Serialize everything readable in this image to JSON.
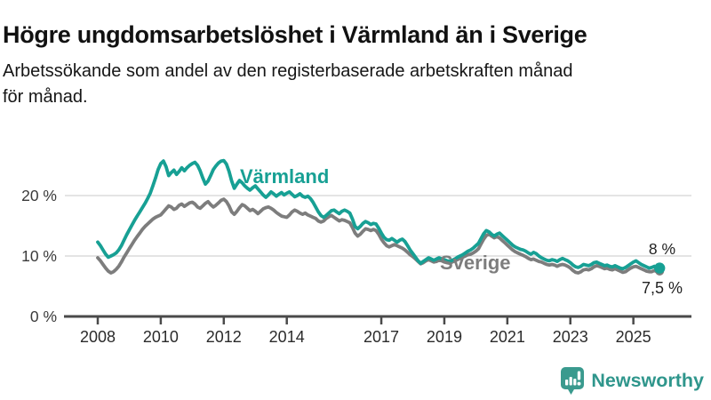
{
  "header": {
    "title": "Högre ungdomsarbetslöshet i Värmland än i Sverige",
    "subtitle_line1": "Arbetssökande som andel av den registerbaserade arbetskraften månad",
    "subtitle_line2": "för månad."
  },
  "chart_data": {
    "type": "line",
    "title": "Högre ungdomsarbetslöshet i Värmland än i Sverige",
    "xlabel": "",
    "ylabel": "Arbetssökande som andel av den registerbaserade arbetskraften",
    "x_start_year": 2008,
    "x_start_month": 1,
    "x_months_per_point": 1,
    "x_end_label_period": "2025 (november)",
    "x_tick_years": [
      2008,
      2010,
      2012,
      2014,
      2017,
      2019,
      2021,
      2023,
      2025
    ],
    "ylim": [
      0,
      27
    ],
    "grid": "horizontal",
    "legend_position": "inline-labels",
    "y_ticks": [
      {
        "value": 0,
        "label": "0 %"
      },
      {
        "value": 10,
        "label": "10 %"
      },
      {
        "value": 20,
        "label": "20 %"
      }
    ],
    "series": [
      {
        "name": "Sverige",
        "color": "#7d7d7d",
        "end_label": "7,5 %",
        "end_value": 7.5,
        "values": [
          9.7,
          9.2,
          8.6,
          8.0,
          7.5,
          7.2,
          7.4,
          7.8,
          8.3,
          9.0,
          9.8,
          10.5,
          11.2,
          11.9,
          12.6,
          13.2,
          13.8,
          14.4,
          14.9,
          15.3,
          15.7,
          16.1,
          16.4,
          16.6,
          16.8,
          17.3,
          17.8,
          18.3,
          18.1,
          17.7,
          17.9,
          18.4,
          18.6,
          18.2,
          18.5,
          18.8,
          18.9,
          18.6,
          18.1,
          17.9,
          18.3,
          18.7,
          19.0,
          18.5,
          18.1,
          18.4,
          18.8,
          19.2,
          19.4,
          19.0,
          18.3,
          17.3,
          16.9,
          17.4,
          18.0,
          18.5,
          18.3,
          17.9,
          17.5,
          17.7,
          17.4,
          17.0,
          17.4,
          17.8,
          18.0,
          18.1,
          17.9,
          17.6,
          17.2,
          16.9,
          16.6,
          16.5,
          16.4,
          16.8,
          17.3,
          17.6,
          17.4,
          17.1,
          16.9,
          17.1,
          16.8,
          16.6,
          16.4,
          16.2,
          15.8,
          15.6,
          15.8,
          16.2,
          16.5,
          16.7,
          16.4,
          16.1,
          15.8,
          16.0,
          15.9,
          15.7,
          15.5,
          14.7,
          13.8,
          13.3,
          13.6,
          14.1,
          14.5,
          14.4,
          14.2,
          14.4,
          14.2,
          13.6,
          12.8,
          12.2,
          11.7,
          11.5,
          11.7,
          11.9,
          11.7,
          11.5,
          11.3,
          11.0,
          10.6,
          10.2,
          9.9,
          9.5,
          9.1,
          8.7,
          8.9,
          9.2,
          9.4,
          9.2,
          9.0,
          9.1,
          9.3,
          9.2,
          9.0,
          8.9,
          8.8,
          9.0,
          9.2,
          9.4,
          9.6,
          9.8,
          10.0,
          10.2,
          10.3,
          10.5,
          10.8,
          11.2,
          12.0,
          12.8,
          13.4,
          13.6,
          13.3,
          13.0,
          13.2,
          13.0,
          12.6,
          12.2,
          11.8,
          11.4,
          11.0,
          10.7,
          10.5,
          10.3,
          10.1,
          9.9,
          9.6,
          9.4,
          9.5,
          9.3,
          9.1,
          9.0,
          8.8,
          8.6,
          8.5,
          8.6,
          8.5,
          8.3,
          8.5,
          8.6,
          8.5,
          8.3,
          8.0,
          7.6,
          7.3,
          7.2,
          7.4,
          7.7,
          7.8,
          7.7,
          7.9,
          8.2,
          8.4,
          8.3,
          8.1,
          7.9,
          8.0,
          7.8,
          7.7,
          7.9,
          7.7,
          7.5,
          7.3,
          7.4,
          7.7,
          8.0,
          8.2,
          8.3,
          8.1,
          7.9,
          7.7,
          7.5,
          7.4,
          7.4,
          7.6,
          7.4,
          7.5
        ]
      },
      {
        "name": "Värmland",
        "color": "#17a094",
        "end_label": "8 %",
        "end_value": 8.0,
        "values": [
          12.3,
          11.7,
          11.0,
          10.3,
          9.8,
          10.0,
          10.2,
          10.5,
          11.0,
          11.7,
          12.6,
          13.5,
          14.3,
          15.1,
          15.9,
          16.6,
          17.3,
          18.0,
          18.7,
          19.5,
          20.4,
          21.6,
          22.9,
          24.3,
          25.3,
          25.7,
          24.8,
          23.3,
          23.8,
          24.2,
          23.5,
          24.0,
          24.6,
          24.1,
          24.6,
          25.0,
          25.3,
          25.5,
          25.0,
          24.1,
          22.9,
          21.9,
          22.4,
          23.3,
          24.3,
          24.9,
          25.4,
          25.7,
          25.8,
          25.2,
          24.0,
          22.4,
          21.2,
          21.9,
          22.5,
          22.1,
          21.6,
          21.2,
          20.9,
          21.3,
          21.6,
          21.1,
          20.6,
          20.1,
          19.7,
          20.1,
          20.6,
          20.3,
          19.9,
          20.2,
          20.5,
          20.1,
          20.4,
          20.6,
          20.2,
          19.8,
          20.0,
          20.3,
          19.9,
          19.7,
          19.9,
          19.5,
          18.9,
          18.1,
          17.3,
          16.7,
          16.4,
          16.7,
          17.1,
          17.5,
          17.6,
          17.3,
          17.0,
          17.4,
          17.6,
          17.4,
          17.1,
          16.1,
          14.9,
          14.5,
          14.9,
          15.4,
          15.7,
          15.5,
          15.2,
          15.4,
          15.3,
          14.6,
          13.8,
          13.1,
          12.7,
          12.6,
          12.9,
          12.6,
          12.3,
          12.6,
          12.8,
          12.4,
          11.7,
          11.0,
          10.4,
          9.8,
          9.2,
          8.8,
          9.1,
          9.4,
          9.7,
          9.5,
          9.3,
          9.5,
          9.7,
          9.5,
          9.4,
          9.2,
          9.1,
          9.3,
          9.5,
          9.8,
          10.0,
          10.2,
          10.5,
          10.8,
          11.0,
          11.3,
          11.7,
          12.1,
          12.9,
          13.7,
          14.2,
          14.0,
          13.6,
          13.3,
          13.6,
          13.8,
          13.4,
          13.0,
          12.6,
          12.2,
          11.8,
          11.5,
          11.3,
          11.1,
          11.0,
          10.8,
          10.5,
          10.3,
          10.6,
          10.4,
          10.0,
          9.7,
          9.5,
          9.3,
          9.2,
          9.4,
          9.3,
          9.1,
          9.4,
          9.6,
          9.4,
          9.2,
          8.9,
          8.5,
          8.2,
          8.1,
          8.3,
          8.6,
          8.5,
          8.4,
          8.6,
          8.9,
          9.0,
          8.8,
          8.6,
          8.4,
          8.5,
          8.3,
          8.2,
          8.4,
          8.2,
          8.0,
          7.9,
          8.1,
          8.4,
          8.7,
          9.0,
          9.2,
          8.9,
          8.6,
          8.4,
          8.2,
          8.0,
          8.1,
          8.3,
          7.9,
          8.0
        ]
      }
    ],
    "style": {
      "gridline_color": "#dcdcdc",
      "axis_color": "#4a4a4a",
      "tick_label_color": "#2b2b2b"
    }
  },
  "footer": {
    "brand": "Newsworthy"
  }
}
